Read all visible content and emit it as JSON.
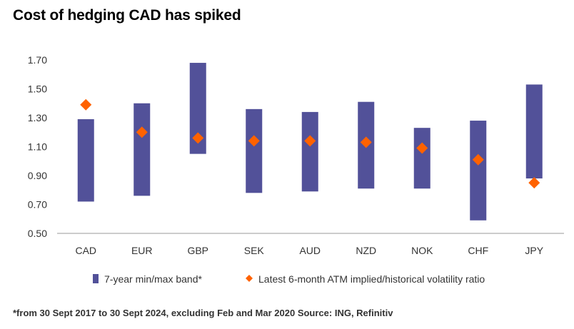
{
  "title": "Cost of hedging CAD has spiked",
  "footnote": "*from 30 Sept 2017 to 30 Sept 2024, excluding Feb and Mar 2020 Source: ING, Refinitiv",
  "chart_data": {
    "type": "bar",
    "title": "Cost of hedging CAD has spiked",
    "xlabel": "",
    "ylabel": "",
    "ylim": [
      0.5,
      1.7
    ],
    "yticks": [
      "0.50",
      "0.70",
      "0.90",
      "1.10",
      "1.30",
      "1.50",
      "1.70"
    ],
    "grid": false,
    "legend_position": "bottom",
    "categories": [
      "CAD",
      "EUR",
      "GBP",
      "SEK",
      "AUD",
      "NZD",
      "NOK",
      "CHF",
      "JPY"
    ],
    "series": [
      {
        "name": "7-year min/max band*",
        "kind": "floating-bar",
        "color": "#525199",
        "min": [
          0.72,
          0.76,
          1.05,
          0.78,
          0.79,
          0.81,
          0.81,
          0.59,
          0.88
        ],
        "max": [
          1.29,
          1.4,
          1.68,
          1.36,
          1.34,
          1.41,
          1.23,
          1.28,
          1.53
        ]
      },
      {
        "name": "Latest 6-month ATM implied/historical volatility ratio",
        "kind": "marker",
        "color": "#FF6200",
        "values": [
          1.39,
          1.2,
          1.16,
          1.14,
          1.14,
          1.13,
          1.09,
          1.01,
          0.85
        ]
      }
    ]
  }
}
